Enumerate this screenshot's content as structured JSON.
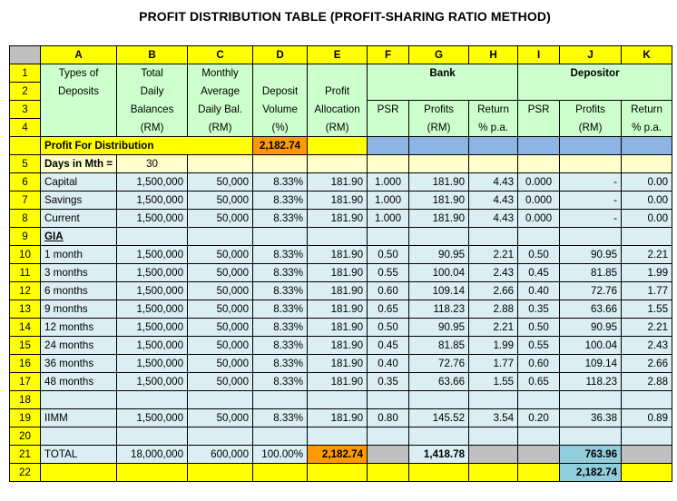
{
  "title": "PROFIT DISTRIBUTION TABLE (PROFIT-SHARING RATIO METHOD)",
  "columns": [
    "A",
    "B",
    "C",
    "D",
    "E",
    "F",
    "G",
    "H",
    "I",
    "J",
    "K"
  ],
  "header": {
    "A": [
      "Types of",
      "Deposits",
      "",
      ""
    ],
    "B": [
      "Total",
      "Daily",
      "Balances",
      "(RM)"
    ],
    "C": [
      "Monthly",
      "Average",
      "Daily Bal.",
      "(RM)"
    ],
    "D": [
      "",
      "Deposit",
      "Volume",
      "(%)"
    ],
    "E": [
      "",
      "Profit",
      "Allocation",
      "(RM)"
    ],
    "bank": "Bank",
    "depositor": "Depositor",
    "F": [
      "PSR",
      ""
    ],
    "G": [
      "Profits",
      "(RM)"
    ],
    "H": [
      "Return",
      "% p.a."
    ],
    "I": [
      "PSR",
      ""
    ],
    "J": [
      "Profits",
      "(RM)"
    ],
    "K": [
      "Return",
      "% p.a."
    ]
  },
  "profit_row": {
    "label": "Profit For Distribution",
    "value": "2,182.74"
  },
  "days_row": {
    "row": "5",
    "label": "Days in Mth =",
    "value": "30"
  },
  "row_numbers": [
    "1",
    "2",
    "3",
    "4",
    "5",
    "6",
    "7",
    "8",
    "9",
    "10",
    "11",
    "12",
    "13",
    "14",
    "15",
    "16",
    "17",
    "18",
    "19",
    "20",
    "21",
    "22"
  ],
  "rows": [
    {
      "n": "6",
      "a": "Capital",
      "b": "1,500,000",
      "c": "50,000",
      "d": "8.33%",
      "e": "181.90",
      "f": "1.000",
      "g": "181.90",
      "h": "4.43",
      "i": "0.000",
      "j": "-",
      "k": "0.00"
    },
    {
      "n": "7",
      "a": "Savings",
      "b": "1,500,000",
      "c": "50,000",
      "d": "8.33%",
      "e": "181.90",
      "f": "1.000",
      "g": "181.90",
      "h": "4.43",
      "i": "0.000",
      "j": "-",
      "k": "0.00"
    },
    {
      "n": "8",
      "a": "Current",
      "b": "1,500,000",
      "c": "50,000",
      "d": "8.33%",
      "e": "181.90",
      "f": "1.000",
      "g": "181.90",
      "h": "4.43",
      "i": "0.000",
      "j": "-",
      "k": "0.00"
    },
    {
      "n": "9",
      "a": "GIA",
      "b": "",
      "c": "",
      "d": "",
      "e": "",
      "f": "",
      "g": "",
      "h": "",
      "i": "",
      "j": "",
      "k": ""
    },
    {
      "n": "10",
      "a": "1 month",
      "b": "1,500,000",
      "c": "50,000",
      "d": "8.33%",
      "e": "181.90",
      "f": "0.50",
      "g": "90.95",
      "h": "2.21",
      "i": "0.50",
      "j": "90.95",
      "k": "2.21"
    },
    {
      "n": "11",
      "a": "3 months",
      "b": "1,500,000",
      "c": "50,000",
      "d": "8.33%",
      "e": "181.90",
      "f": "0.55",
      "g": "100.04",
      "h": "2.43",
      "i": "0.45",
      "j": "81.85",
      "k": "1.99"
    },
    {
      "n": "12",
      "a": "6 months",
      "b": "1,500,000",
      "c": "50,000",
      "d": "8.33%",
      "e": "181.90",
      "f": "0.60",
      "g": "109.14",
      "h": "2.66",
      "i": "0.40",
      "j": "72.76",
      "k": "1.77"
    },
    {
      "n": "13",
      "a": "9 months",
      "b": "1,500,000",
      "c": "50,000",
      "d": "8.33%",
      "e": "181.90",
      "f": "0.65",
      "g": "118.23",
      "h": "2.88",
      "i": "0.35",
      "j": "63.66",
      "k": "1.55"
    },
    {
      "n": "14",
      "a": "12 months",
      "b": "1,500,000",
      "c": "50,000",
      "d": "8.33%",
      "e": "181.90",
      "f": "0.50",
      "g": "90.95",
      "h": "2.21",
      "i": "0.50",
      "j": "90.95",
      "k": "2.21"
    },
    {
      "n": "15",
      "a": "24 months",
      "b": "1,500,000",
      "c": "50,000",
      "d": "8.33%",
      "e": "181.90",
      "f": "0.45",
      "g": "81.85",
      "h": "1.99",
      "i": "0.55",
      "j": "100.04",
      "k": "2.43"
    },
    {
      "n": "16",
      "a": "36 months",
      "b": "1,500,000",
      "c": "50,000",
      "d": "8.33%",
      "e": "181.90",
      "f": "0.40",
      "g": "72.76",
      "h": "1.77",
      "i": "0.60",
      "j": "109.14",
      "k": "2.66"
    },
    {
      "n": "17",
      "a": "48 months",
      "b": "1,500,000",
      "c": "50,000",
      "d": "8.33%",
      "e": "181.90",
      "f": "0.35",
      "g": "63.66",
      "h": "1.55",
      "i": "0.65",
      "j": "118.23",
      "k": "2.88"
    },
    {
      "n": "18",
      "a": "",
      "b": "",
      "c": "",
      "d": "",
      "e": "",
      "f": "",
      "g": "",
      "h": "",
      "i": "",
      "j": "",
      "k": ""
    },
    {
      "n": "19",
      "a": "IIMM",
      "b": "1,500,000",
      "c": "50,000",
      "d": "8.33%",
      "e": "181.90",
      "f": "0.80",
      "g": "145.52",
      "h": "3.54",
      "i": "0.20",
      "j": "36.38",
      "k": "0.89"
    },
    {
      "n": "20",
      "a": "",
      "b": "",
      "c": "",
      "d": "",
      "e": "",
      "f": "",
      "g": "",
      "h": "",
      "i": "",
      "j": "",
      "k": ""
    }
  ],
  "total": {
    "n": "21",
    "a": "TOTAL",
    "b": "18,000,000",
    "c": "600,000",
    "d": "100.00%",
    "e": "2,182.74",
    "g": "1,418.78",
    "j": "763.96"
  },
  "grand": {
    "n": "22",
    "j": "2,182.74"
  }
}
